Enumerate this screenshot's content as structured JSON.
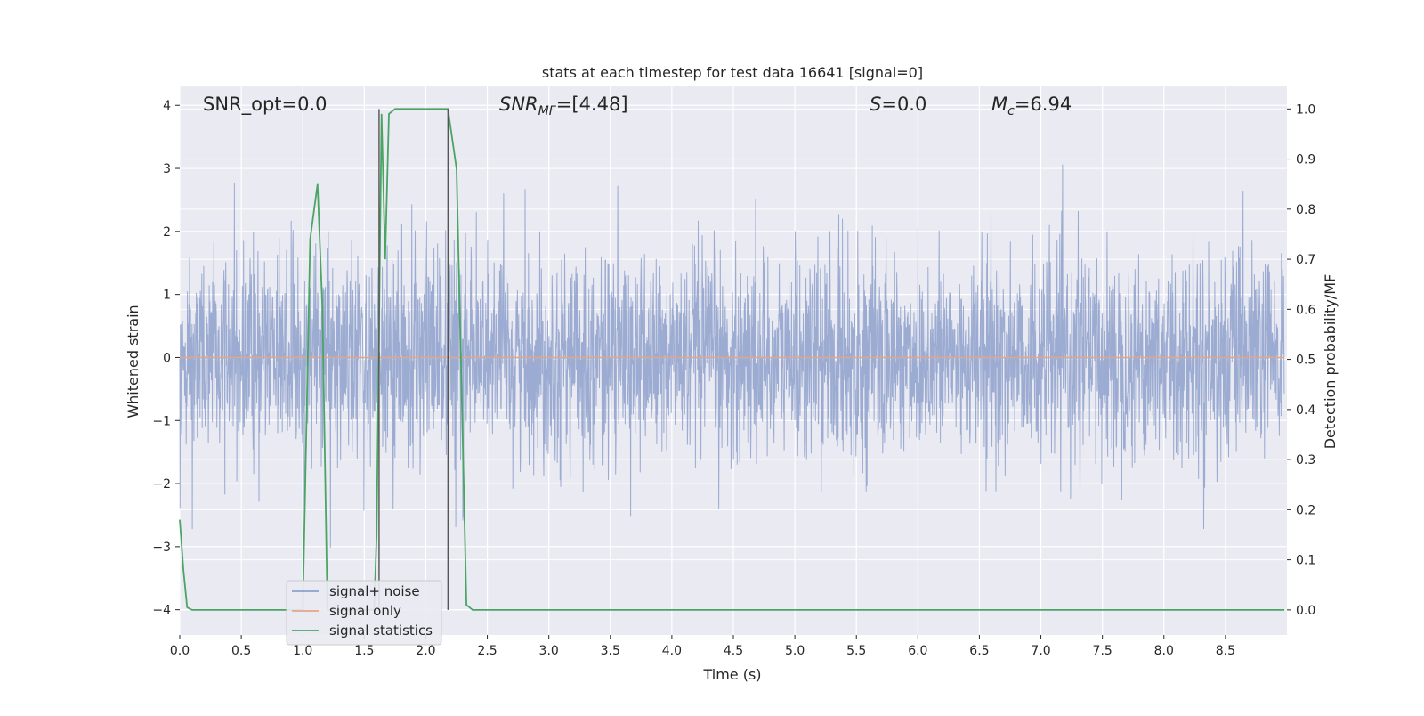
{
  "chart_data": {
    "type": "line",
    "title": "stats at each timestep for test data 16641 [signal=0]",
    "xlabel": "Time (s)",
    "ylabel": "Whitened strain",
    "ylabel_right": "Detection probability/MF",
    "xlim": [
      0.0,
      9.0
    ],
    "ylim": [
      -4.4,
      4.3
    ],
    "ylim_right": [
      -0.05,
      1.045
    ],
    "x_ticks": [
      0.0,
      0.5,
      1.0,
      1.5,
      2.0,
      2.5,
      3.0,
      3.5,
      4.0,
      4.5,
      5.0,
      5.5,
      6.0,
      6.5,
      7.0,
      7.5,
      8.0,
      8.5
    ],
    "x_tick_labels": [
      "0.0",
      "0.5",
      "1.0",
      "1.5",
      "2.0",
      "2.5",
      "3.0",
      "3.5",
      "4.0",
      "4.5",
      "5.0",
      "5.5",
      "6.0",
      "6.5",
      "7.0",
      "7.5",
      "8.0",
      "8.5"
    ],
    "y_ticks": [
      4,
      3,
      2,
      1,
      0,
      -1,
      -2,
      -3,
      -4
    ],
    "y_tick_labels": [
      "4",
      "3",
      "2",
      "1",
      "0",
      "−1",
      "−2",
      "−3",
      "−4"
    ],
    "y_right_ticks": [
      1.0,
      0.9,
      0.8,
      0.7,
      0.6,
      0.5,
      0.4,
      0.3,
      0.2,
      0.1,
      0.0
    ],
    "y_right_tick_labels": [
      "1.0",
      "0.9",
      "0.8",
      "0.7",
      "0.6",
      "0.5",
      "0.4",
      "0.3",
      "0.2",
      "0.1",
      "0.0"
    ],
    "grid": true,
    "legend_position": "lower-left",
    "annotations": {
      "snr_opt": "SNR_opt=0.0",
      "snr_mf_main": "SNR",
      "snr_mf_sub": "MF",
      "snr_mf_value": "=[4.48]",
      "s_main": "S",
      "s_value": "=0.0",
      "mc_main": "M",
      "mc_sub": "c",
      "mc_value": "=6.94"
    },
    "vertical_markers": [
      1.62,
      2.18
    ],
    "series": [
      {
        "name": "signal+ noise",
        "axis": "left",
        "color": "#8da0cb",
        "style": "dense-noise",
        "approx_std": 0.8,
        "approx_range": [
          -3.45,
          3.9
        ],
        "values": []
      },
      {
        "name": "signal only",
        "axis": "left",
        "color": "#e5a58a",
        "values_constant": 0.0
      },
      {
        "name": "signal statistics",
        "axis": "right",
        "color": "#4aa564",
        "x": [
          0.0,
          0.03,
          0.06,
          0.1,
          1.0,
          1.06,
          1.12,
          1.16,
          1.2,
          1.58,
          1.6,
          1.64,
          1.67,
          1.7,
          1.75,
          2.18,
          2.25,
          2.33,
          2.38,
          8.98
        ],
        "y": [
          0.18,
          0.08,
          0.005,
          0.0,
          0.0,
          0.74,
          0.85,
          0.6,
          0.0,
          0.0,
          0.15,
          0.99,
          0.7,
          0.99,
          1.0,
          1.0,
          0.88,
          0.01,
          0.0,
          0.0
        ]
      }
    ]
  }
}
